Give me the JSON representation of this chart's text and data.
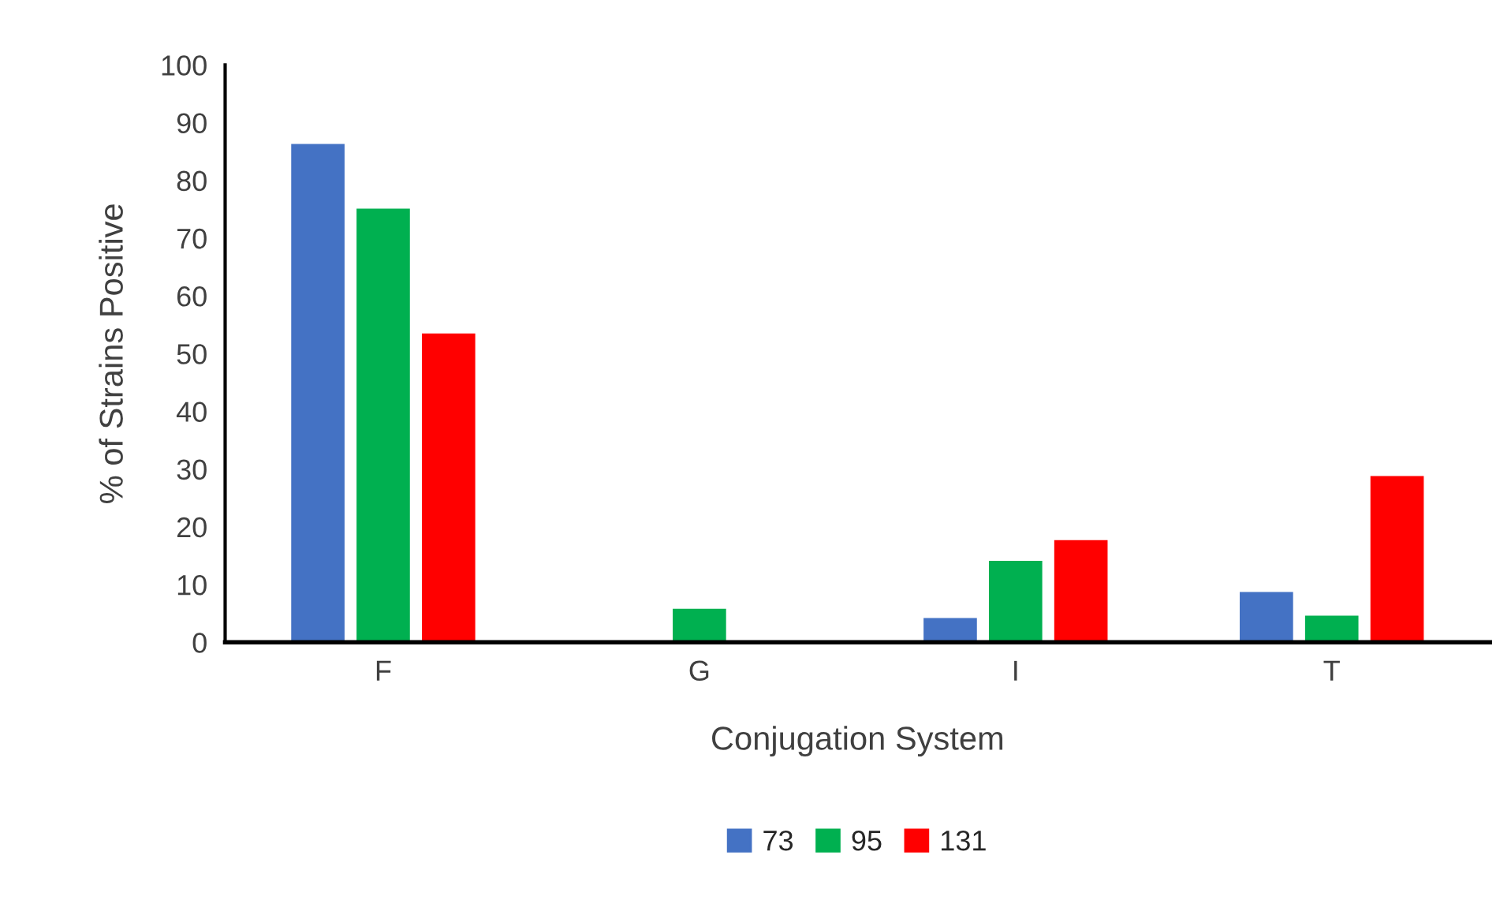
{
  "chart_data": {
    "type": "bar",
    "xlabel": "Conjugation System",
    "ylabel": "% of Strains Positive",
    "categories": [
      "F",
      "G",
      "I",
      "T"
    ],
    "series": [
      {
        "name": "73",
        "color": "#4472c4",
        "values": [
          86.5,
          null,
          4.4,
          8.9
        ]
      },
      {
        "name": "95",
        "color": "#00b050",
        "values": [
          75.3,
          6.0,
          14.3,
          4.8
        ]
      },
      {
        "name": "131",
        "color": "#ff0000",
        "values": [
          53.7,
          null,
          17.9,
          29.0
        ]
      }
    ],
    "ylim": [
      0,
      100
    ],
    "yticks": [
      0,
      10,
      20,
      30,
      40,
      50,
      60,
      70,
      80,
      90,
      100
    ],
    "grid": false,
    "legend": "bottom"
  }
}
